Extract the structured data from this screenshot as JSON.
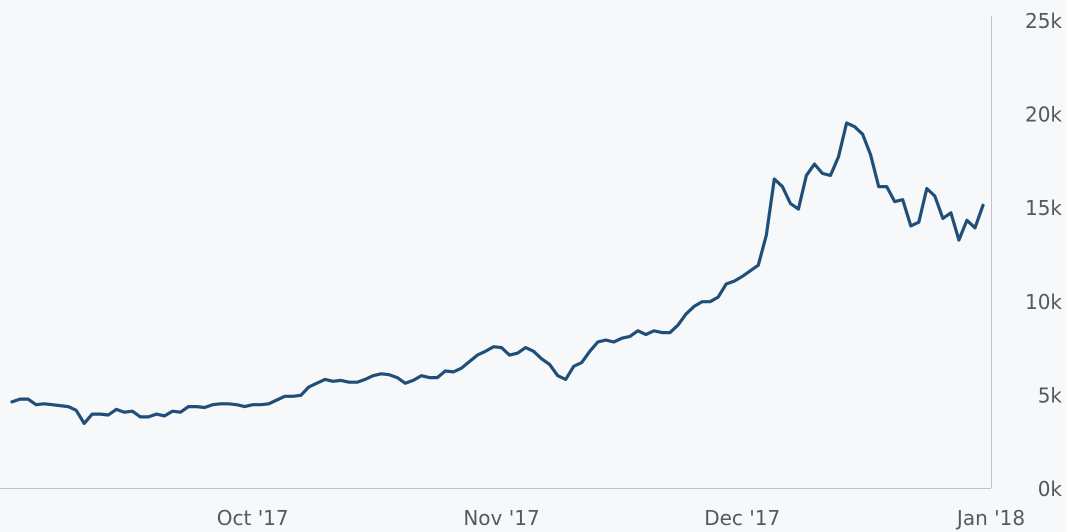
{
  "colors": {
    "background": "#f7f8fa",
    "line": "#1f4e79",
    "axis": "#c0c4ca",
    "text": "#555a60"
  },
  "chart_data": {
    "type": "line",
    "x_type": "date",
    "xlim": [
      "2017-09-01",
      "2018-01-01"
    ],
    "ylim": [
      0,
      25000
    ],
    "y_axis_side": "right",
    "grid": false,
    "x_ticks": [
      {
        "date": "2017-10-01",
        "label": "Oct '17"
      },
      {
        "date": "2017-11-01",
        "label": "Nov '17"
      },
      {
        "date": "2017-12-01",
        "label": "Dec '17"
      },
      {
        "date": "2018-01-01",
        "label": "Jan '18"
      }
    ],
    "y_ticks": [
      {
        "value": 0,
        "label": "0k"
      },
      {
        "value": 5000,
        "label": "5k"
      },
      {
        "value": 10000,
        "label": "10k"
      },
      {
        "value": 15000,
        "label": "15k"
      },
      {
        "value": 20000,
        "label": "20k"
      },
      {
        "value": 25000,
        "label": "25k"
      }
    ],
    "series": [
      {
        "points": [
          [
            "2017-09-01",
            4600
          ],
          [
            "2017-09-02",
            4750
          ],
          [
            "2017-09-03",
            4750
          ],
          [
            "2017-09-04",
            4450
          ],
          [
            "2017-09-05",
            4500
          ],
          [
            "2017-09-06",
            4450
          ],
          [
            "2017-09-07",
            4400
          ],
          [
            "2017-09-08",
            4350
          ],
          [
            "2017-09-09",
            4150
          ],
          [
            "2017-09-10",
            3450
          ],
          [
            "2017-09-11",
            3950
          ],
          [
            "2017-09-12",
            3950
          ],
          [
            "2017-09-13",
            3900
          ],
          [
            "2017-09-14",
            4200
          ],
          [
            "2017-09-15",
            4050
          ],
          [
            "2017-09-16",
            4100
          ],
          [
            "2017-09-17",
            3800
          ],
          [
            "2017-09-18",
            3800
          ],
          [
            "2017-09-19",
            3950
          ],
          [
            "2017-09-20",
            3850
          ],
          [
            "2017-09-21",
            4100
          ],
          [
            "2017-09-22",
            4050
          ],
          [
            "2017-09-23",
            4350
          ],
          [
            "2017-09-24",
            4350
          ],
          [
            "2017-09-25",
            4300
          ],
          [
            "2017-09-26",
            4450
          ],
          [
            "2017-09-27",
            4500
          ],
          [
            "2017-09-28",
            4500
          ],
          [
            "2017-09-29",
            4450
          ],
          [
            "2017-09-30",
            4350
          ],
          [
            "2017-10-01",
            4450
          ],
          [
            "2017-10-02",
            4450
          ],
          [
            "2017-10-03",
            4500
          ],
          [
            "2017-10-04",
            4700
          ],
          [
            "2017-10-05",
            4900
          ],
          [
            "2017-10-06",
            4900
          ],
          [
            "2017-10-07",
            4950
          ],
          [
            "2017-10-08",
            5400
          ],
          [
            "2017-10-09",
            5600
          ],
          [
            "2017-10-10",
            5800
          ],
          [
            "2017-10-11",
            5700
          ],
          [
            "2017-10-12",
            5750
          ],
          [
            "2017-10-13",
            5650
          ],
          [
            "2017-10-14",
            5650
          ],
          [
            "2017-10-15",
            5800
          ],
          [
            "2017-10-16",
            6000
          ],
          [
            "2017-10-17",
            6100
          ],
          [
            "2017-10-18",
            6050
          ],
          [
            "2017-10-19",
            5900
          ],
          [
            "2017-10-20",
            5600
          ],
          [
            "2017-10-21",
            5750
          ],
          [
            "2017-10-22",
            6000
          ],
          [
            "2017-10-23",
            5900
          ],
          [
            "2017-10-24",
            5900
          ],
          [
            "2017-10-25",
            6250
          ],
          [
            "2017-10-26",
            6200
          ],
          [
            "2017-10-27",
            6400
          ],
          [
            "2017-10-28",
            6750
          ],
          [
            "2017-10-29",
            7100
          ],
          [
            "2017-10-30",
            7300
          ],
          [
            "2017-10-31",
            7550
          ],
          [
            "2017-11-01",
            7500
          ],
          [
            "2017-11-02",
            7100
          ],
          [
            "2017-11-03",
            7200
          ],
          [
            "2017-11-04",
            7500
          ],
          [
            "2017-11-05",
            7300
          ],
          [
            "2017-11-06",
            6900
          ],
          [
            "2017-11-07",
            6600
          ],
          [
            "2017-11-08",
            6000
          ],
          [
            "2017-11-09",
            5800
          ],
          [
            "2017-11-10",
            6500
          ],
          [
            "2017-11-11",
            6700
          ],
          [
            "2017-11-12",
            7300
          ],
          [
            "2017-11-13",
            7800
          ],
          [
            "2017-11-14",
            7900
          ],
          [
            "2017-11-15",
            7800
          ],
          [
            "2017-11-16",
            8000
          ],
          [
            "2017-11-17",
            8100
          ],
          [
            "2017-11-18",
            8400
          ],
          [
            "2017-11-19",
            8200
          ],
          [
            "2017-11-20",
            8400
          ],
          [
            "2017-11-21",
            8300
          ],
          [
            "2017-11-22",
            8300
          ],
          [
            "2017-11-23",
            8700
          ],
          [
            "2017-11-24",
            9300
          ],
          [
            "2017-11-25",
            9700
          ],
          [
            "2017-11-26",
            9950
          ],
          [
            "2017-11-27",
            9950
          ],
          [
            "2017-11-28",
            10200
          ],
          [
            "2017-11-29",
            10900
          ],
          [
            "2017-11-30",
            11050
          ],
          [
            "2017-12-01",
            11300
          ],
          [
            "2017-12-02",
            11600
          ],
          [
            "2017-12-03",
            11900
          ],
          [
            "2017-12-04",
            13500
          ],
          [
            "2017-12-05",
            16500
          ],
          [
            "2017-12-06",
            16100
          ],
          [
            "2017-12-07",
            15200
          ],
          [
            "2017-12-08",
            14900
          ],
          [
            "2017-12-09",
            16700
          ],
          [
            "2017-12-10",
            17300
          ],
          [
            "2017-12-11",
            16800
          ],
          [
            "2017-12-12",
            16700
          ],
          [
            "2017-12-13",
            17700
          ],
          [
            "2017-12-14",
            19500
          ],
          [
            "2017-12-15",
            19300
          ],
          [
            "2017-12-16",
            18900
          ],
          [
            "2017-12-17",
            17800
          ],
          [
            "2017-12-18",
            16100
          ],
          [
            "2017-12-19",
            16100
          ],
          [
            "2017-12-20",
            15300
          ],
          [
            "2017-12-21",
            15400
          ],
          [
            "2017-12-22",
            14000
          ],
          [
            "2017-12-23",
            14200
          ],
          [
            "2017-12-24",
            16000
          ],
          [
            "2017-12-25",
            15600
          ],
          [
            "2017-12-26",
            14400
          ],
          [
            "2017-12-27",
            14700
          ],
          [
            "2017-12-28",
            13250
          ],
          [
            "2017-12-29",
            14300
          ],
          [
            "2017-12-30",
            13900
          ],
          [
            "2017-12-31",
            15100
          ]
        ]
      }
    ]
  }
}
